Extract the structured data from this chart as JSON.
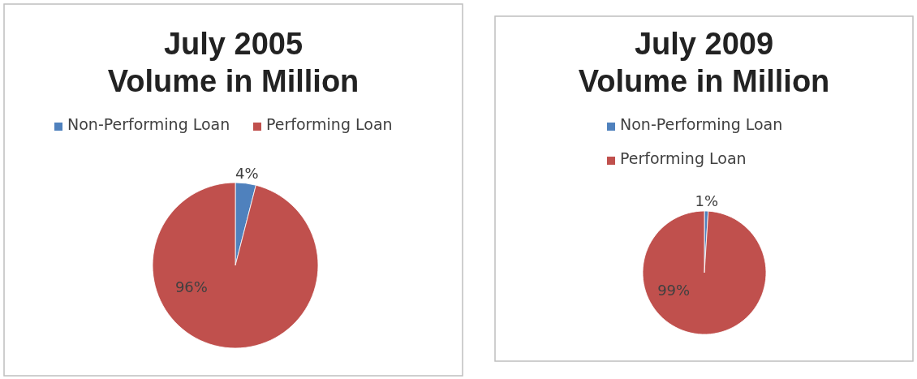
{
  "chart_data": [
    {
      "type": "pie",
      "title": "July 2005\nVolume in Million",
      "categories": [
        "Non-Performing Loan",
        "Performing Loan"
      ],
      "values": [
        4,
        96
      ],
      "colors": [
        "#4f81bd",
        "#c0504d"
      ],
      "value_labels": [
        "4%",
        "96%"
      ],
      "legend": "top"
    },
    {
      "type": "pie",
      "title": "July 2009\nVolume in Million",
      "categories": [
        "Non-Performing Loan",
        "Performing Loan"
      ],
      "values": [
        1,
        99
      ],
      "colors": [
        "#4f81bd",
        "#c0504d"
      ],
      "value_labels": [
        "1%",
        "99%"
      ],
      "legend": "top"
    }
  ]
}
